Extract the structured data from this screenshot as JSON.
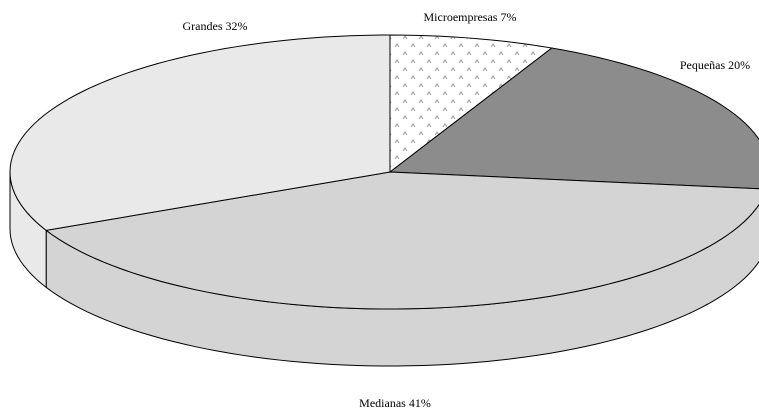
{
  "chart_data": {
    "type": "pie3d",
    "categories": [
      "Microempresas",
      "Pequeñas",
      "Medianas",
      "Grandes"
    ],
    "values": [
      7,
      20,
      41,
      32
    ],
    "value_labels": [
      "7%",
      "20%",
      "41%",
      "32%"
    ],
    "colors": [
      "#ffffff",
      "#8c8c8c",
      "#d4d4d4",
      "#e9e9e9"
    ]
  }
}
